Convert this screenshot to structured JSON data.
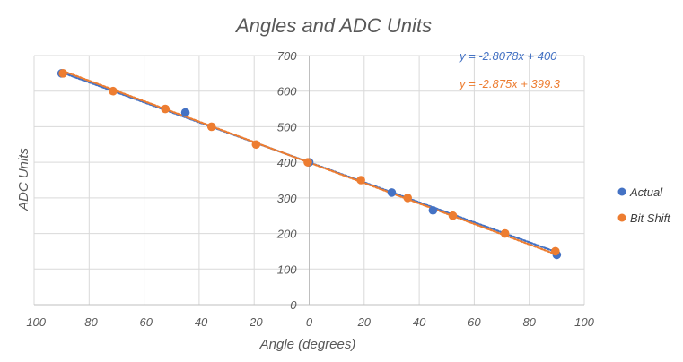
{
  "chart_data": {
    "type": "scatter",
    "title": "Angles and ADC Units",
    "xlabel": "Angle (degrees)",
    "ylabel": "ADC Units",
    "xlim": [
      -100,
      100
    ],
    "ylim": [
      0,
      700
    ],
    "x_ticks": [
      "-100",
      "-80",
      "-60",
      "-40",
      "-20",
      "0",
      "20",
      "40",
      "60",
      "80",
      "100"
    ],
    "y_ticks": [
      "0",
      "100",
      "200",
      "300",
      "400",
      "500",
      "600",
      "700"
    ],
    "grid": true,
    "legend_position": "right",
    "series": [
      {
        "name": "Actual",
        "color": "#4472C4",
        "points": [
          [
            -90,
            650
          ],
          [
            -45,
            540
          ],
          [
            0,
            400
          ],
          [
            30,
            315
          ],
          [
            45,
            265
          ],
          [
            90,
            140
          ]
        ],
        "trendline": {
          "slope": -2.8078,
          "intercept": 400,
          "label": "y = -2.8078x + 400"
        }
      },
      {
        "name": "Bit Shift",
        "color": "#ED7D31",
        "points": [
          [
            -89.5,
            650
          ],
          [
            -71.3,
            600
          ],
          [
            -52.3,
            550
          ],
          [
            -35.5,
            500
          ],
          [
            -19.3,
            450
          ],
          [
            -0.5,
            400
          ],
          [
            18.8,
            350
          ],
          [
            35.8,
            300
          ],
          [
            52.2,
            250
          ],
          [
            71.2,
            200
          ],
          [
            89.5,
            150
          ]
        ],
        "trendline": {
          "slope": -2.875,
          "intercept": 399.3,
          "label": "y = -2.875x + 399.3"
        }
      }
    ]
  }
}
